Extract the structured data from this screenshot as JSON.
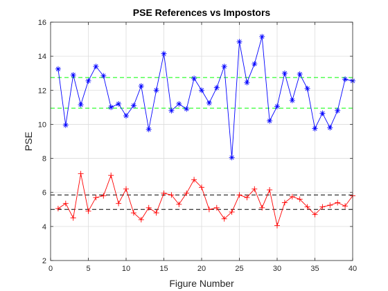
{
  "chart_data": {
    "type": "line",
    "title": "PSE References vs Impostors",
    "xlabel": "Figure Number",
    "ylabel": "PSE",
    "xlim": [
      0,
      40
    ],
    "ylim": [
      2,
      16
    ],
    "x_ticks": [
      "0",
      "5",
      "10",
      "15",
      "20",
      "25",
      "30",
      "35",
      "40"
    ],
    "y_ticks": [
      "2",
      "4",
      "6",
      "8",
      "10",
      "12",
      "14",
      "16"
    ],
    "grid": true,
    "x": [
      1,
      2,
      3,
      4,
      5,
      6,
      7,
      8,
      9,
      10,
      11,
      12,
      13,
      14,
      15,
      16,
      17,
      18,
      19,
      20,
      21,
      22,
      23,
      24,
      25,
      26,
      27,
      28,
      29,
      30,
      31,
      32,
      33,
      34,
      35,
      36,
      37,
      38,
      39,
      40
    ],
    "series": [
      {
        "marker": "asterisk",
        "color": "#0000ff",
        "values": [
          13.25,
          9.95,
          12.9,
          11.15,
          12.55,
          13.4,
          12.85,
          11.0,
          11.2,
          10.5,
          11.1,
          12.25,
          9.7,
          12.0,
          14.15,
          10.8,
          11.2,
          10.9,
          12.7,
          12.0,
          11.25,
          12.15,
          13.4,
          8.05,
          14.85,
          12.45,
          13.55,
          15.15,
          10.2,
          11.05,
          13.0,
          11.4,
          12.95,
          12.1,
          9.75,
          10.65,
          9.8,
          10.8,
          12.65,
          12.55
        ]
      },
      {
        "marker": "plus",
        "color": "#ff0000",
        "values": [
          5.05,
          5.35,
          4.5,
          7.1,
          4.9,
          5.7,
          5.8,
          7.0,
          5.35,
          6.2,
          4.8,
          4.4,
          5.1,
          4.8,
          5.95,
          5.85,
          5.3,
          5.95,
          6.75,
          6.3,
          5.0,
          5.1,
          4.45,
          4.85,
          5.85,
          5.7,
          6.2,
          5.1,
          6.15,
          4.05,
          5.4,
          5.75,
          5.6,
          5.15,
          4.7,
          5.15,
          5.25,
          5.4,
          5.2,
          5.8
        ]
      }
    ],
    "reference_lines": [
      {
        "y": 12.75,
        "color": "#00ff00",
        "style": "dashed"
      },
      {
        "y": 10.95,
        "color": "#00ff00",
        "style": "dashed"
      },
      {
        "y": 5.85,
        "color": "#000000",
        "style": "dashed"
      },
      {
        "y": 5.0,
        "color": "#000000",
        "style": "dashed"
      }
    ]
  }
}
